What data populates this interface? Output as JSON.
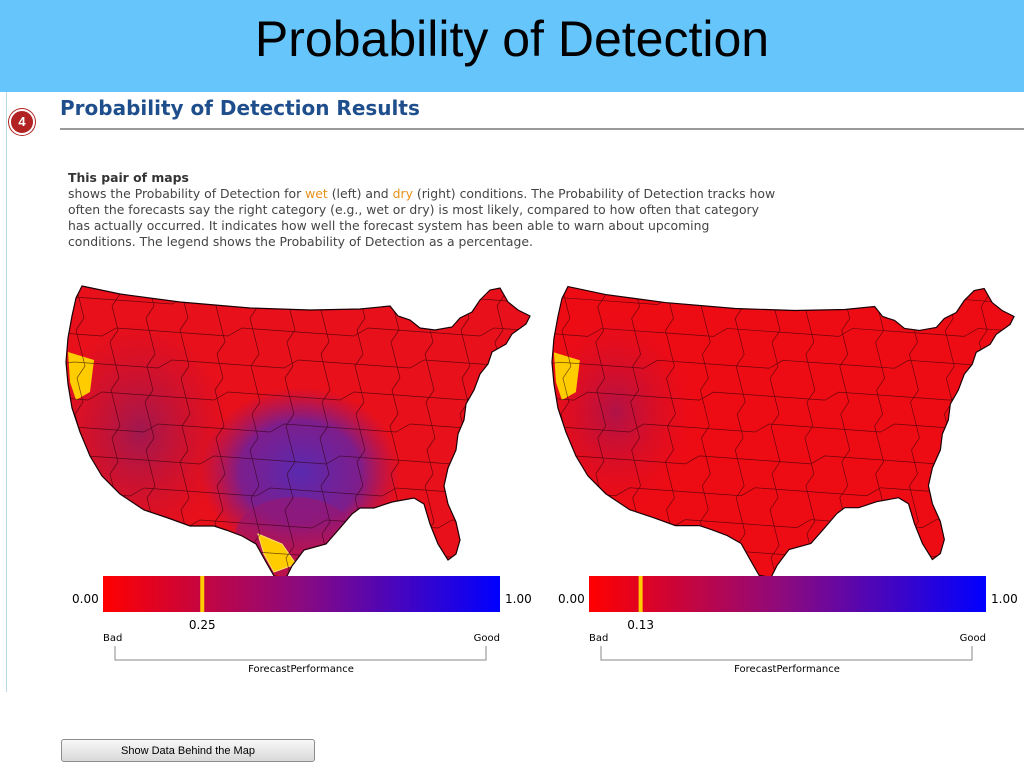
{
  "slide": {
    "title": "Probability of Detection"
  },
  "section": {
    "step_number": "4",
    "title": "Probability of Detection Results"
  },
  "description": {
    "lead": "This pair of maps",
    "text_before_wet": "shows the Probability of Detection for ",
    "wet_word": "wet",
    "text_between": " (left) and ",
    "dry_word": "dry",
    "text_after": " (right) conditions. The Probability of Detection tracks how often the forecasts say the right category (e.g., wet or dry) is most likely, compared to how often that category has actually occurred. It indicates how well the forecast system has been able to warn about upcoming conditions. The legend shows the Probability of Detection as a percentage.",
    "highlight_color": "#e8901a"
  },
  "maps": [
    {
      "condition": "wet",
      "legend": {
        "min_label": "0.00",
        "max_label": "1.00",
        "marker_value": 0.25,
        "marker_label": "0.25",
        "bad_label": "Bad",
        "good_label": "Good",
        "axis_label": "ForecastPerformance"
      }
    },
    {
      "condition": "dry",
      "legend": {
        "min_label": "0.00",
        "max_label": "1.00",
        "marker_value": 0.13,
        "marker_label": "0.13",
        "bad_label": "Bad",
        "good_label": "Good",
        "axis_label": "ForecastPerformance"
      }
    }
  ],
  "colors": {
    "title_bar": "#66c6fb",
    "scale_low": "#ff0000",
    "scale_high": "#0000ff",
    "marker": "#ffcc00",
    "no_data": "#ffcc00"
  },
  "buttons": {
    "show_data_label": "Show Data Behind the Map"
  }
}
